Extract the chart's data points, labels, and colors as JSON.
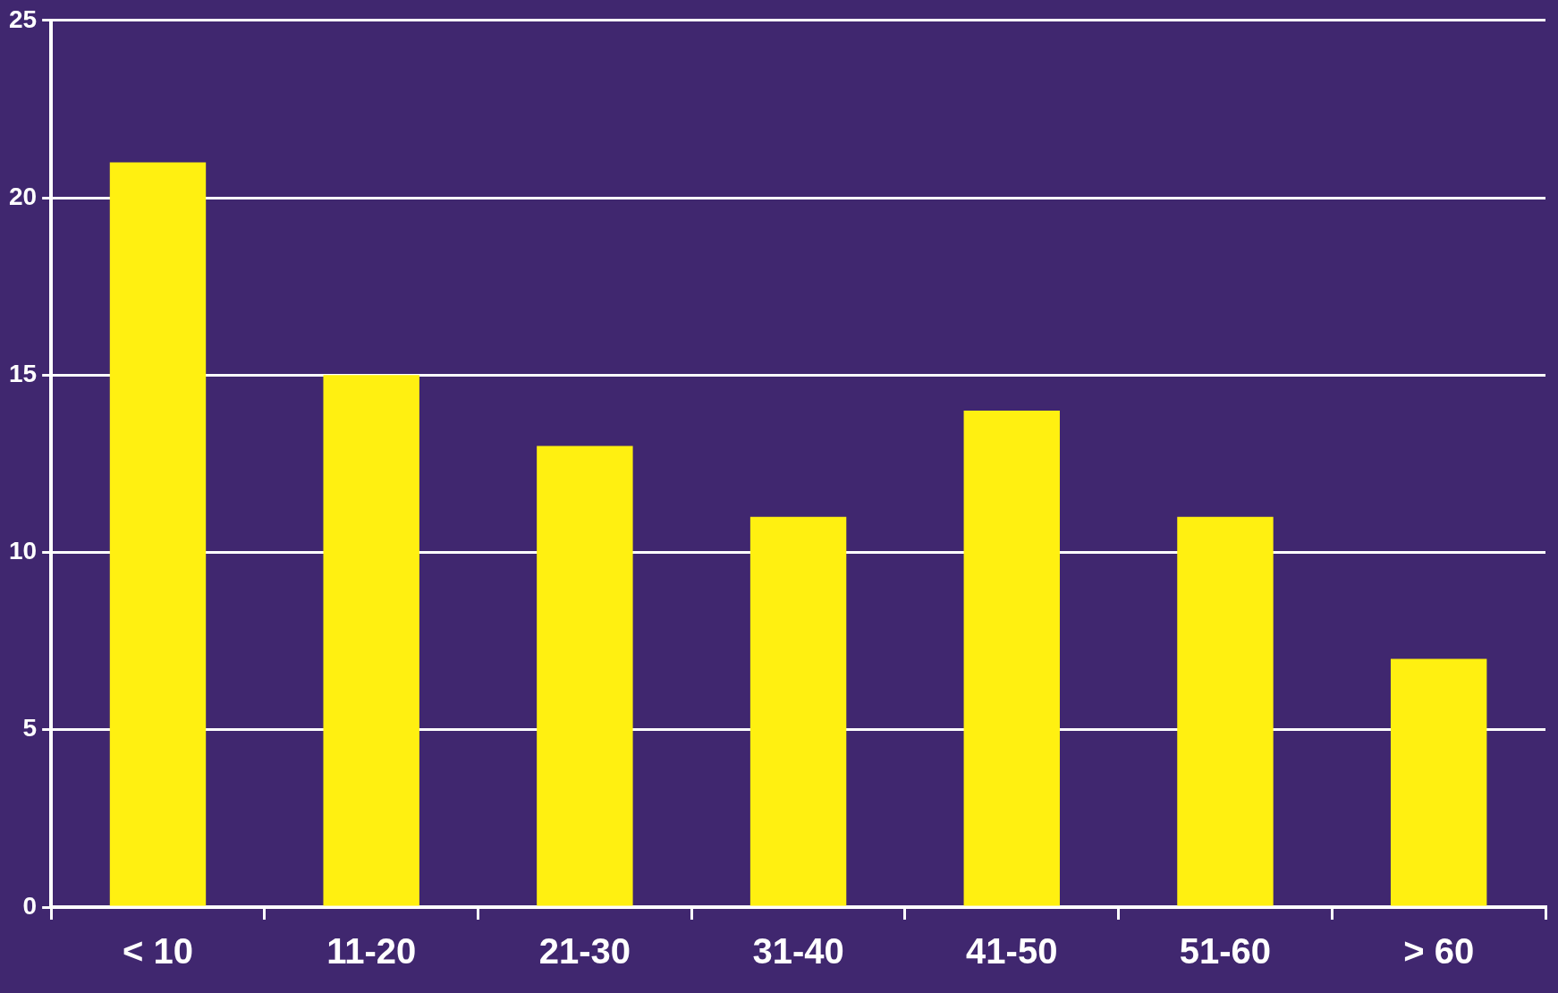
{
  "chart_data": {
    "type": "bar",
    "categories": [
      "< 10",
      "11-20",
      "21-30",
      "31-40",
      "41-50",
      "51-60",
      "> 60"
    ],
    "values": [
      21,
      15,
      13,
      11,
      14,
      11,
      7
    ],
    "color": "#fff011",
    "ylim": [
      0,
      25
    ],
    "yticks": [
      0,
      5,
      10,
      15,
      20,
      25
    ],
    "grid": "y"
  }
}
